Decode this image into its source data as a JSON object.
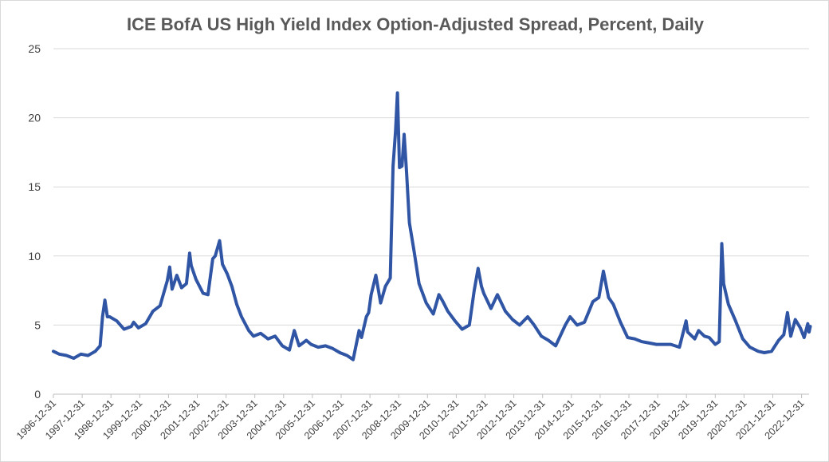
{
  "chart_data": {
    "type": "line",
    "title": "ICE BofA US High Yield Index Option-Adjusted Spread, Percent, Daily",
    "xlabel": "",
    "ylabel": "",
    "ylim": [
      0,
      25
    ],
    "yticks": [
      "0",
      "5",
      "10",
      "15",
      "20",
      "25"
    ],
    "xticks": [
      "1996-12-31",
      "1997-12-31",
      "1998-12-31",
      "1999-12-31",
      "2000-12-31",
      "2001-12-31",
      "2002-12-31",
      "2003-12-31",
      "2004-12-31",
      "2005-12-31",
      "2006-12-31",
      "2007-12-31",
      "2008-12-31",
      "2009-12-31",
      "2010-12-31",
      "2011-12-31",
      "2012-12-31",
      "2013-12-31",
      "2014-12-31",
      "2015-12-31",
      "2016-12-31",
      "2017-12-31",
      "2018-12-31",
      "2019-12-31",
      "2020-12-31",
      "2021-12-31",
      "2022-12-31"
    ],
    "grid": true,
    "legend": "none",
    "line_color": "#2f55a4",
    "series": [
      {
        "points": [
          [
            "1996-12-31",
            3.1
          ],
          [
            "1997-03-15",
            2.9
          ],
          [
            "1997-06-15",
            2.8
          ],
          [
            "1997-09-15",
            2.6
          ],
          [
            "1997-12-15",
            2.9
          ],
          [
            "1998-03-15",
            2.8
          ],
          [
            "1998-06-15",
            3.1
          ],
          [
            "1998-08-15",
            3.5
          ],
          [
            "1998-09-15",
            5.6
          ],
          [
            "1998-10-15",
            6.8
          ],
          [
            "1998-11-15",
            5.6
          ],
          [
            "1998-12-15",
            5.6
          ],
          [
            "1999-03-15",
            5.3
          ],
          [
            "1999-06-15",
            4.7
          ],
          [
            "1999-09-15",
            4.9
          ],
          [
            "1999-10-15",
            5.2
          ],
          [
            "1999-12-15",
            4.8
          ],
          [
            "2000-03-15",
            5.1
          ],
          [
            "2000-06-15",
            6.0
          ],
          [
            "2000-09-15",
            6.4
          ],
          [
            "2000-12-15",
            8.2
          ],
          [
            "2001-01-15",
            9.2
          ],
          [
            "2001-02-15",
            7.6
          ],
          [
            "2001-04-15",
            8.6
          ],
          [
            "2001-06-15",
            7.7
          ],
          [
            "2001-08-15",
            8.0
          ],
          [
            "2001-09-25",
            10.2
          ],
          [
            "2001-10-15",
            9.3
          ],
          [
            "2001-12-15",
            8.3
          ],
          [
            "2002-03-15",
            7.3
          ],
          [
            "2002-05-15",
            7.2
          ],
          [
            "2002-07-15",
            9.8
          ],
          [
            "2002-08-15",
            10.0
          ],
          [
            "2002-10-10",
            11.1
          ],
          [
            "2002-11-15",
            9.4
          ],
          [
            "2003-01-15",
            8.7
          ],
          [
            "2003-03-15",
            7.8
          ],
          [
            "2003-05-15",
            6.5
          ],
          [
            "2003-07-15",
            5.6
          ],
          [
            "2003-10-15",
            4.6
          ],
          [
            "2003-12-15",
            4.2
          ],
          [
            "2004-03-15",
            4.4
          ],
          [
            "2004-06-15",
            4.0
          ],
          [
            "2004-09-15",
            4.2
          ],
          [
            "2004-12-15",
            3.5
          ],
          [
            "2005-03-15",
            3.2
          ],
          [
            "2005-05-15",
            4.6
          ],
          [
            "2005-07-15",
            3.5
          ],
          [
            "2005-10-15",
            3.9
          ],
          [
            "2005-12-15",
            3.6
          ],
          [
            "2006-03-15",
            3.4
          ],
          [
            "2006-06-15",
            3.5
          ],
          [
            "2006-09-15",
            3.3
          ],
          [
            "2006-12-15",
            3.0
          ],
          [
            "2007-03-15",
            2.8
          ],
          [
            "2007-06-01",
            2.5
          ],
          [
            "2007-08-15",
            4.6
          ],
          [
            "2007-09-15",
            4.1
          ],
          [
            "2007-11-15",
            5.6
          ],
          [
            "2007-12-15",
            5.9
          ],
          [
            "2008-01-15",
            7.2
          ],
          [
            "2008-03-15",
            8.6
          ],
          [
            "2008-05-15",
            6.6
          ],
          [
            "2008-07-15",
            7.8
          ],
          [
            "2008-09-15",
            8.4
          ],
          [
            "2008-10-20",
            16.5
          ],
          [
            "2008-11-20",
            19.0
          ],
          [
            "2008-12-15",
            21.8
          ],
          [
            "2009-01-10",
            16.4
          ],
          [
            "2009-02-10",
            16.5
          ],
          [
            "2009-03-10",
            18.8
          ],
          [
            "2009-04-10",
            16.0
          ],
          [
            "2009-05-15",
            12.4
          ],
          [
            "2009-07-15",
            10.3
          ],
          [
            "2009-09-15",
            8.0
          ],
          [
            "2009-12-15",
            6.6
          ],
          [
            "2010-03-15",
            5.8
          ],
          [
            "2010-05-25",
            7.2
          ],
          [
            "2010-07-15",
            6.7
          ],
          [
            "2010-09-15",
            6.0
          ],
          [
            "2010-12-15",
            5.3
          ],
          [
            "2011-03-15",
            4.7
          ],
          [
            "2011-06-15",
            5.0
          ],
          [
            "2011-08-15",
            7.5
          ],
          [
            "2011-10-04",
            9.1
          ],
          [
            "2011-11-15",
            7.8
          ],
          [
            "2011-12-15",
            7.3
          ],
          [
            "2012-03-15",
            6.2
          ],
          [
            "2012-06-05",
            7.2
          ],
          [
            "2012-09-15",
            6.0
          ],
          [
            "2012-12-15",
            5.4
          ],
          [
            "2013-03-15",
            5.0
          ],
          [
            "2013-06-25",
            5.6
          ],
          [
            "2013-09-15",
            5.0
          ],
          [
            "2013-12-15",
            4.2
          ],
          [
            "2014-03-15",
            3.9
          ],
          [
            "2014-06-15",
            3.5
          ],
          [
            "2014-10-15",
            5.0
          ],
          [
            "2014-12-15",
            5.6
          ],
          [
            "2015-03-15",
            5.0
          ],
          [
            "2015-06-15",
            5.2
          ],
          [
            "2015-09-30",
            6.7
          ],
          [
            "2015-12-15",
            7.0
          ],
          [
            "2016-02-11",
            8.9
          ],
          [
            "2016-04-15",
            7.0
          ],
          [
            "2016-06-15",
            6.5
          ],
          [
            "2016-09-15",
            5.2
          ],
          [
            "2016-12-15",
            4.1
          ],
          [
            "2017-03-15",
            4.0
          ],
          [
            "2017-06-15",
            3.8
          ],
          [
            "2017-09-15",
            3.7
          ],
          [
            "2017-12-15",
            3.6
          ],
          [
            "2018-03-15",
            3.6
          ],
          [
            "2018-06-15",
            3.6
          ],
          [
            "2018-10-03",
            3.4
          ],
          [
            "2018-12-26",
            5.3
          ],
          [
            "2019-01-15",
            4.5
          ],
          [
            "2019-04-15",
            4.0
          ],
          [
            "2019-06-03",
            4.6
          ],
          [
            "2019-08-15",
            4.2
          ],
          [
            "2019-10-15",
            4.1
          ],
          [
            "2019-12-31",
            3.6
          ],
          [
            "2020-02-20",
            3.8
          ],
          [
            "2020-03-23",
            10.9
          ],
          [
            "2020-04-15",
            8.0
          ],
          [
            "2020-06-15",
            6.5
          ],
          [
            "2020-09-15",
            5.3
          ],
          [
            "2020-12-15",
            4.0
          ],
          [
            "2021-03-15",
            3.4
          ],
          [
            "2021-06-30",
            3.1
          ],
          [
            "2021-09-15",
            3.0
          ],
          [
            "2021-12-15",
            3.1
          ],
          [
            "2022-03-15",
            3.9
          ],
          [
            "2022-05-20",
            4.3
          ],
          [
            "2022-07-05",
            5.9
          ],
          [
            "2022-08-15",
            4.2
          ],
          [
            "2022-10-12",
            5.4
          ],
          [
            "2022-12-15",
            4.8
          ],
          [
            "2023-02-01",
            4.1
          ],
          [
            "2023-03-20",
            5.1
          ],
          [
            "2023-04-05",
            4.5
          ],
          [
            "2023-04-20",
            4.9
          ]
        ]
      }
    ]
  }
}
